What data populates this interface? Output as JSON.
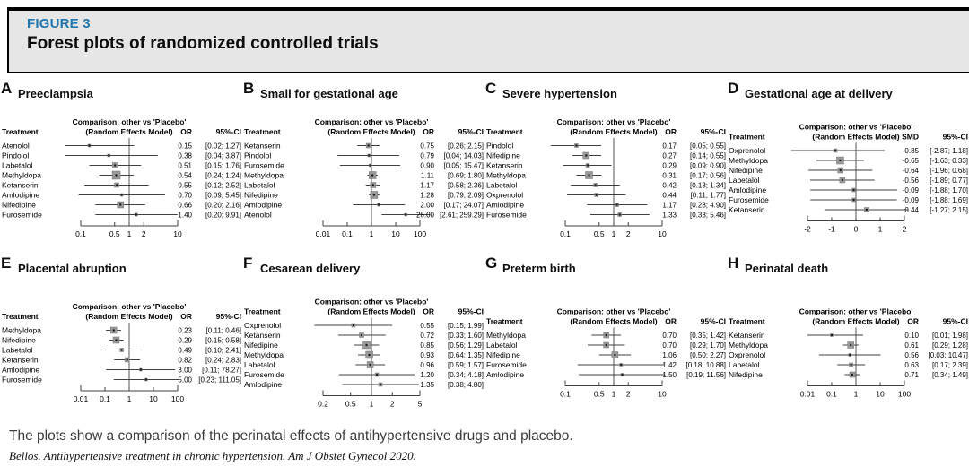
{
  "figure_header": {
    "label": "FIGURE 3",
    "title": "Forest plots of randomized controlled trials"
  },
  "caption": "The plots show a comparison of the perinatal effects of antihypertensive drugs and placebo.",
  "credit": "Bellos. Antihypertensive treatment in chronic hypertension. Am J Obstet Gynecol 2020.",
  "colors": {
    "figure_label_blue": "#2176ae",
    "header_bg": "#e6e6e6",
    "marker_gray": "#999999",
    "line_dark": "#404040"
  },
  "chart_data": [
    {
      "type": "forest",
      "letter": "A",
      "title": "Preeclampsia",
      "comparison_line1": "Comparison: other vs 'Placebo'",
      "comparison_line2": "(Random Effects Model)",
      "col_treatment": "Treatment",
      "effect_label": "OR",
      "ci_label": "95%-CI",
      "scale": "log",
      "ref": 1,
      "ticks": [
        0.1,
        0.5,
        1,
        2,
        10
      ],
      "tick_labels": [
        "0.1",
        "0.5",
        "1",
        "2",
        "10"
      ],
      "rows": [
        {
          "treatment": "Atenolol",
          "est": 0.15,
          "lower": 0.02,
          "upper": 1.27,
          "est_text": "0.15",
          "ci_text": "[0.02; 1.27]",
          "weight": 3
        },
        {
          "treatment": "Pindolol",
          "est": 0.38,
          "lower": 0.04,
          "upper": 3.87,
          "est_text": "0.38",
          "ci_text": "[0.04; 3.87]",
          "weight": 3
        },
        {
          "treatment": "Labetalol",
          "est": 0.51,
          "lower": 0.15,
          "upper": 1.76,
          "est_text": "0.51",
          "ci_text": "[0.15; 1.76]",
          "weight": 6
        },
        {
          "treatment": "Methyldopa",
          "est": 0.54,
          "lower": 0.24,
          "upper": 1.24,
          "est_text": "0.54",
          "ci_text": "[0.24; 1.24]",
          "weight": 9
        },
        {
          "treatment": "Ketanserin",
          "est": 0.55,
          "lower": 0.12,
          "upper": 2.52,
          "est_text": "0.55",
          "ci_text": "[0.12; 2.52]",
          "weight": 5
        },
        {
          "treatment": "Amlodipine",
          "est": 0.7,
          "lower": 0.09,
          "upper": 5.45,
          "est_text": "0.70",
          "ci_text": "[0.09; 5.45]",
          "weight": 3
        },
        {
          "treatment": "Nifedipine",
          "est": 0.66,
          "lower": 0.2,
          "upper": 2.16,
          "est_text": "0.66",
          "ci_text": "[0.20; 2.16]",
          "weight": 7
        },
        {
          "treatment": "Furosemide",
          "est": 1.4,
          "lower": 0.2,
          "upper": 9.91,
          "est_text": "1.40",
          "ci_text": "[0.20; 9.91]",
          "weight": 3
        }
      ]
    },
    {
      "type": "forest",
      "letter": "B",
      "title": "Small for gestational age",
      "comparison_line1": "Comparison: other vs 'Placebo'",
      "comparison_line2": "(Random Effects Model)",
      "col_treatment": "Treatment",
      "effect_label": "OR",
      "ci_label": "95%-CI",
      "scale": "log",
      "ref": 1,
      "ticks": [
        0.01,
        0.1,
        1,
        10,
        100
      ],
      "tick_labels": [
        "0.01",
        "0.1",
        "1",
        "10",
        "100"
      ],
      "rows": [
        {
          "treatment": "Ketanserin",
          "est": 0.75,
          "lower": 0.26,
          "upper": 2.15,
          "est_text": "0.75",
          "ci_text": "[0.26; 2.15]",
          "weight": 5
        },
        {
          "treatment": "Pindolol",
          "est": 0.79,
          "lower": 0.04,
          "upper": 14.03,
          "est_text": "0.79",
          "ci_text": "[0.04; 14.03]",
          "weight": 3
        },
        {
          "treatment": "Furosemide",
          "est": 0.9,
          "lower": 0.05,
          "upper": 15.47,
          "est_text": "0.90",
          "ci_text": "[0.05; 15.47]",
          "weight": 3
        },
        {
          "treatment": "Methyldopa",
          "est": 1.11,
          "lower": 0.69,
          "upper": 1.8,
          "est_text": "1.11",
          "ci_text": "[0.69; 1.80]",
          "weight": 8
        },
        {
          "treatment": "Labetalol",
          "est": 1.17,
          "lower": 0.58,
          "upper": 2.36,
          "est_text": "1.17",
          "ci_text": "[0.58; 2.36]",
          "weight": 6
        },
        {
          "treatment": "Nifedipine",
          "est": 1.28,
          "lower": 0.79,
          "upper": 2.09,
          "est_text": "1.28",
          "ci_text": "[0.79; 2.09]",
          "weight": 8
        },
        {
          "treatment": "Amlodipine",
          "est": 2.0,
          "lower": 0.17,
          "upper": 24.07,
          "est_text": "2.00",
          "ci_text": "[0.17; 24.07]",
          "weight": 3
        },
        {
          "treatment": "Atenolol",
          "est": 26.0,
          "lower": 2.61,
          "upper": 259.29,
          "est_text": "26.00",
          "ci_text": "[2.61; 259.29]",
          "weight": 3
        }
      ]
    },
    {
      "type": "forest",
      "letter": "C",
      "title": "Severe hypertension",
      "comparison_line1": "Comparison: other vs 'Placebo'",
      "comparison_line2": "(Random Effects Model)",
      "col_treatment": "Treatment",
      "effect_label": "OR",
      "ci_label": "95%-CI",
      "scale": "log",
      "ref": 1,
      "ticks": [
        0.1,
        0.5,
        1,
        2,
        10
      ],
      "tick_labels": [
        "0.1",
        "0.5",
        "1",
        "2",
        "10"
      ],
      "rows": [
        {
          "treatment": "Pindolol",
          "est": 0.17,
          "lower": 0.05,
          "upper": 0.55,
          "est_text": "0.17",
          "ci_text": "[0.05; 0.55]",
          "weight": 4
        },
        {
          "treatment": "Nifedipine",
          "est": 0.27,
          "lower": 0.14,
          "upper": 0.55,
          "est_text": "0.27",
          "ci_text": "[0.14; 0.55]",
          "weight": 7
        },
        {
          "treatment": "Ketanserin",
          "est": 0.29,
          "lower": 0.09,
          "upper": 0.9,
          "est_text": "0.29",
          "ci_text": "[0.09; 0.90]",
          "weight": 4
        },
        {
          "treatment": "Methyldopa",
          "est": 0.31,
          "lower": 0.17,
          "upper": 0.56,
          "est_text": "0.31",
          "ci_text": "[0.17; 0.56]",
          "weight": 8
        },
        {
          "treatment": "Labetalol",
          "est": 0.42,
          "lower": 0.13,
          "upper": 1.34,
          "est_text": "0.42",
          "ci_text": "[0.13; 1.34]",
          "weight": 4
        },
        {
          "treatment": "Oxprenolol",
          "est": 0.44,
          "lower": 0.11,
          "upper": 1.77,
          "est_text": "0.44",
          "ci_text": "[0.11; 1.77]",
          "weight": 4
        },
        {
          "treatment": "Amlodipine",
          "est": 1.17,
          "lower": 0.28,
          "upper": 4.9,
          "est_text": "1.17",
          "ci_text": "[0.28; 4.90]",
          "weight": 4
        },
        {
          "treatment": "Furosemide",
          "est": 1.33,
          "lower": 0.33,
          "upper": 5.46,
          "est_text": "1.33",
          "ci_text": "[0.33; 5.46]",
          "weight": 4
        }
      ]
    },
    {
      "type": "forest",
      "letter": "D",
      "title": "Gestational age at delivery",
      "comparison_line1": "Comparison: other vs 'Placebo'",
      "comparison_line2": "(Random Effects Model)",
      "col_treatment": "Treatment",
      "effect_label": "SMD",
      "ci_label": "95%-CI",
      "scale": "linear",
      "ref": 0,
      "ticks": [
        -2,
        -1,
        0,
        1,
        2
      ],
      "tick_labels": [
        "-2",
        "-1",
        "0",
        "1",
        "2"
      ],
      "rows": [
        {
          "treatment": "Oxprenolol",
          "est": -0.85,
          "lower": -2.87,
          "upper": 1.18,
          "est_text": "-0.85",
          "ci_text": "[-2.87; 1.18]",
          "weight": 4
        },
        {
          "treatment": "Methyldopa",
          "est": -0.65,
          "lower": -1.63,
          "upper": 0.33,
          "est_text": "-0.65",
          "ci_text": "[-1.63; 0.33]",
          "weight": 8
        },
        {
          "treatment": "Nifedipine",
          "est": -0.64,
          "lower": -1.96,
          "upper": 0.68,
          "est_text": "-0.64",
          "ci_text": "[-1.96; 0.68]",
          "weight": 6
        },
        {
          "treatment": "Labetalol",
          "est": -0.56,
          "lower": -1.89,
          "upper": 0.77,
          "est_text": "-0.56",
          "ci_text": "[-1.89; 0.77]",
          "weight": 6
        },
        {
          "treatment": "Amlodipine",
          "est": -0.09,
          "lower": -1.88,
          "upper": 1.7,
          "est_text": "-0.09",
          "ci_text": "[-1.88; 1.70]",
          "weight": 4
        },
        {
          "treatment": "Furosemide",
          "est": -0.09,
          "lower": -1.88,
          "upper": 1.69,
          "est_text": "-0.09",
          "ci_text": "[-1.88; 1.69]",
          "weight": 4
        },
        {
          "treatment": "Ketanserin",
          "est": 0.44,
          "lower": -1.27,
          "upper": 2.15,
          "est_text": "0.44",
          "ci_text": "[-1.27; 2.15]",
          "weight": 5
        }
      ]
    },
    {
      "type": "forest",
      "letter": "E",
      "title": "Placental abruption",
      "comparison_line1": "Comparison: other vs 'Placebo'",
      "comparison_line2": "(Random Effects Model)",
      "col_treatment": "Treatment",
      "effect_label": "OR",
      "ci_label": "95%-CI",
      "scale": "log",
      "ref": 1,
      "ticks": [
        0.01,
        0.1,
        1,
        10,
        100
      ],
      "tick_labels": [
        "0.01",
        "0.1",
        "1",
        "10",
        "100"
      ],
      "rows": [
        {
          "treatment": "Methyldopa",
          "est": 0.23,
          "lower": 0.11,
          "upper": 0.46,
          "est_text": "0.23",
          "ci_text": "[0.11; 0.46]",
          "weight": 7
        },
        {
          "treatment": "Nifedipine",
          "est": 0.29,
          "lower": 0.15,
          "upper": 0.58,
          "est_text": "0.29",
          "ci_text": "[0.15; 0.58]",
          "weight": 7
        },
        {
          "treatment": "Labetalol",
          "est": 0.49,
          "lower": 0.1,
          "upper": 2.41,
          "est_text": "0.49",
          "ci_text": "[0.10; 2.41]",
          "weight": 4
        },
        {
          "treatment": "Ketanserin",
          "est": 0.82,
          "lower": 0.24,
          "upper": 2.83,
          "est_text": "0.82",
          "ci_text": "[0.24; 2.83]",
          "weight": 5
        },
        {
          "treatment": "Amlodipine",
          "est": 3.0,
          "lower": 0.11,
          "upper": 78.27,
          "est_text": "3.00",
          "ci_text": "[0.11; 78.27]",
          "weight": 3
        },
        {
          "treatment": "Furosemide",
          "est": 5.0,
          "lower": 0.23,
          "upper": 111.05,
          "est_text": "5.00",
          "ci_text": "[0.23; 111.05]",
          "weight": 3
        }
      ]
    },
    {
      "type": "forest",
      "letter": "F",
      "title": "Cesarean delivery",
      "comparison_line1": "Comparison: other vs 'Placebo'",
      "comparison_line2": "(Random Effects Model)",
      "col_treatment": "Treatment",
      "effect_label": "OR",
      "ci_label": "95%-CI",
      "scale": "log",
      "ref": 1,
      "ticks": [
        0.2,
        0.5,
        1,
        2,
        5
      ],
      "tick_labels": [
        "0.2",
        "0.5",
        "1",
        "2",
        "5"
      ],
      "rows": [
        {
          "treatment": "Oxprenolol",
          "est": 0.55,
          "lower": 0.15,
          "upper": 1.99,
          "est_text": "0.55",
          "ci_text": "[0.15; 1.99]",
          "weight": 4
        },
        {
          "treatment": "Ketanserin",
          "est": 0.72,
          "lower": 0.33,
          "upper": 1.6,
          "est_text": "0.72",
          "ci_text": "[0.33; 1.60]",
          "weight": 5
        },
        {
          "treatment": "Nifedipine",
          "est": 0.85,
          "lower": 0.56,
          "upper": 1.29,
          "est_text": "0.85",
          "ci_text": "[0.56; 1.29]",
          "weight": 8
        },
        {
          "treatment": "Methyldopa",
          "est": 0.93,
          "lower": 0.64,
          "upper": 1.35,
          "est_text": "0.93",
          "ci_text": "[0.64; 1.35]",
          "weight": 8
        },
        {
          "treatment": "Labetalol",
          "est": 0.96,
          "lower": 0.59,
          "upper": 1.57,
          "est_text": "0.96",
          "ci_text": "[0.59; 1.57]",
          "weight": 7
        },
        {
          "treatment": "Furosemide",
          "est": 1.2,
          "lower": 0.34,
          "upper": 4.18,
          "est_text": "1.20",
          "ci_text": "[0.34; 4.18]",
          "weight": 4
        },
        {
          "treatment": "Amlodipine",
          "est": 1.35,
          "lower": 0.38,
          "upper": 4.8,
          "est_text": "1.35",
          "ci_text": "[0.38; 4.80]",
          "weight": 4
        }
      ]
    },
    {
      "type": "forest",
      "letter": "G",
      "title": "Preterm birth",
      "comparison_line1": "Comparison: other vs 'Placebo'",
      "comparison_line2": "(Random Effects Model)",
      "col_treatment": "Treatment",
      "effect_label": "OR",
      "ci_label": "95%-CI",
      "scale": "log",
      "ref": 1,
      "ticks": [
        0.1,
        0.5,
        1,
        2,
        10
      ],
      "tick_labels": [
        "0.1",
        "0.5",
        "1",
        "2",
        "10"
      ],
      "rows": [
        {
          "treatment": "Methyldopa",
          "est": 0.7,
          "lower": 0.35,
          "upper": 1.42,
          "est_text": "0.70",
          "ci_text": "[0.35; 1.42]",
          "weight": 6
        },
        {
          "treatment": "Labetalol",
          "est": 0.7,
          "lower": 0.29,
          "upper": 1.7,
          "est_text": "0.70",
          "ci_text": "[0.29; 1.70]",
          "weight": 6
        },
        {
          "treatment": "Nifedipine",
          "est": 1.06,
          "lower": 0.5,
          "upper": 2.27,
          "est_text": "1.06",
          "ci_text": "[0.50; 2.27]",
          "weight": 7
        },
        {
          "treatment": "Furosemide",
          "est": 1.42,
          "lower": 0.18,
          "upper": 10.88,
          "est_text": "1.42",
          "ci_text": "[0.18; 10.88]",
          "weight": 3
        },
        {
          "treatment": "Amlodipine",
          "est": 1.5,
          "lower": 0.19,
          "upper": 11.56,
          "est_text": "1.50",
          "ci_text": "[0.19; 11.56]",
          "weight": 3
        }
      ]
    },
    {
      "type": "forest",
      "letter": "H",
      "title": "Perinatal death",
      "comparison_line1": "Comparison: other vs 'Placebo'",
      "comparison_line2": "(Random Effects Model)",
      "col_treatment": "Treatment",
      "effect_label": "OR",
      "ci_label": "95%-CI",
      "scale": "log",
      "ref": 1,
      "ticks": [
        0.01,
        0.1,
        1,
        10,
        100
      ],
      "tick_labels": [
        "0.01",
        "0.1",
        "1",
        "10",
        "100"
      ],
      "rows": [
        {
          "treatment": "Ketanserin",
          "est": 0.1,
          "lower": 0.01,
          "upper": 1.98,
          "est_text": "0.10",
          "ci_text": "[0.01; 1.98]",
          "weight": 3
        },
        {
          "treatment": "Methyldopa",
          "est": 0.61,
          "lower": 0.29,
          "upper": 1.28,
          "est_text": "0.61",
          "ci_text": "[0.29; 1.28]",
          "weight": 7
        },
        {
          "treatment": "Oxprenolol",
          "est": 0.56,
          "lower": 0.03,
          "upper": 10.47,
          "est_text": "0.56",
          "ci_text": "[0.03; 10.47]",
          "weight": 3
        },
        {
          "treatment": "Labetalol",
          "est": 0.63,
          "lower": 0.17,
          "upper": 2.39,
          "est_text": "0.63",
          "ci_text": "[0.17; 2.39]",
          "weight": 4
        },
        {
          "treatment": "Nifedipine",
          "est": 0.71,
          "lower": 0.34,
          "upper": 1.49,
          "est_text": "0.71",
          "ci_text": "[0.34; 1.49]",
          "weight": 6
        }
      ]
    }
  ]
}
